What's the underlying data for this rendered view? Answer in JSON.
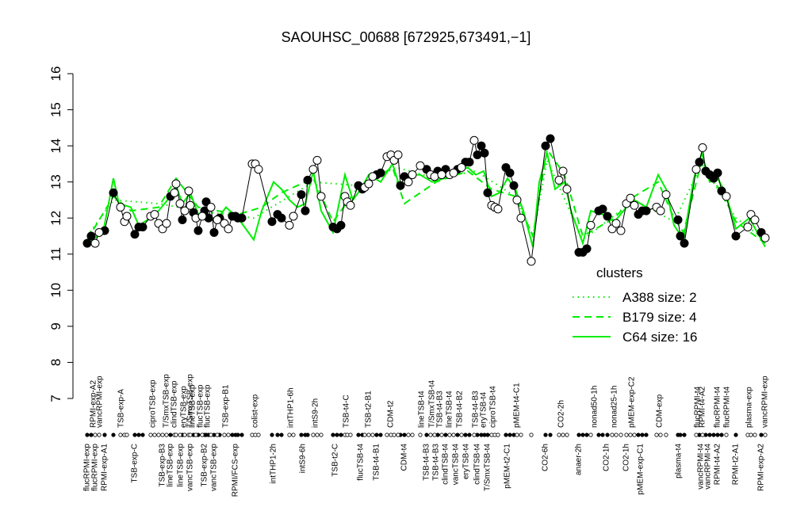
{
  "chart_data": {
    "type": "scatter",
    "title": "SAOUHSC_00688 [672925,673491,−1]",
    "ylim": [
      7,
      16
    ],
    "yticks": [
      7,
      8,
      9,
      10,
      11,
      12,
      13,
      14,
      15,
      16
    ],
    "xlim": [
      0,
      175
    ],
    "points": [
      {
        "color": "#000000",
        "x": [
          2,
          3,
          6.4,
          8.6,
          14,
          15,
          16,
          23,
          26,
          28.8,
          30,
          31.6,
          32,
          32.6,
          34,
          35.4,
          38.6,
          39.4,
          40,
          41,
          48.6,
          50,
          51,
          56,
          57,
          57.6,
          64,
          65,
          66,
          70.4,
          71.4,
          75,
          76,
          81,
          82,
          87.6,
          90.4,
          92.4,
          95.4,
          97.4,
          98.4,
          100.4,
          101.4,
          102.2,
          103,
          107.6,
          108.6,
          109.6,
          117.6,
          118.8,
          126,
          127,
          128,
          131,
          132,
          133.2,
          141,
          142,
          143,
          151,
          151.6,
          152.6,
          156.4,
          158,
          159,
          160,
          161,
          162,
          165.6,
          172
        ],
        "values": [
          11.3,
          11.5,
          11.65,
          12.7,
          11.55,
          11.75,
          11.75,
          12.6,
          11.95,
          12.15,
          11.65,
          12.2,
          12.45,
          12.0,
          11.6,
          12.0,
          12.05,
          12.05,
          12.0,
          12.0,
          11.9,
          12.1,
          12.0,
          12.65,
          12.2,
          13.05,
          11.75,
          11.7,
          11.8,
          12.9,
          12.8,
          13.2,
          13.25,
          12.9,
          13.15,
          13.35,
          13.3,
          13.35,
          13.35,
          13.55,
          13.55,
          13.75,
          14.0,
          13.8,
          12.7,
          13.4,
          13.25,
          12.9,
          14.0,
          14.2,
          11.05,
          11.05,
          11.15,
          12.2,
          12.25,
          12.05,
          12.1,
          12.2,
          12.2,
          11.95,
          11.5,
          11.3,
          13.55,
          13.3,
          13.2,
          13.1,
          13.25,
          12.75,
          11.5,
          11.6
        ]
      },
      {
        "color": "#ffffff",
        "x": [
          4,
          5,
          10.4,
          11.4,
          12,
          18,
          19,
          20,
          21,
          22,
          24,
          24.4,
          25.4,
          26.6,
          27.6,
          28,
          29.4,
          31,
          33.2,
          34.8,
          36.6,
          37.6,
          43.6,
          44.4,
          45.2,
          53,
          54,
          59,
          60,
          61,
          67,
          67.6,
          68.4,
          72,
          73,
          74,
          77.6,
          78.6,
          79.4,
          80.4,
          83,
          84,
          86,
          88.6,
          89.6,
          91.4,
          93.4,
          94.4,
          96.4,
          99.6,
          104,
          104.8,
          105.6,
          110.4,
          111.4,
          114,
          121,
          122,
          123,
          129,
          134.4,
          135.4,
          136.6,
          138,
          139,
          140,
          145.6,
          146.6,
          148,
          155.6,
          157.2,
          163.2,
          168.6,
          169.4,
          170.4,
          173
        ],
        "values": [
          11.3,
          11.6,
          12.3,
          11.9,
          12.05,
          12.05,
          12.1,
          11.85,
          11.7,
          11.85,
          12.7,
          12.95,
          12.4,
          12.2,
          12.75,
          12.35,
          12.0,
          12.05,
          12.3,
          11.95,
          11.85,
          11.7,
          13.5,
          13.5,
          13.35,
          11.8,
          12.05,
          13.35,
          13.6,
          12.6,
          12.6,
          12.45,
          12.35,
          12.85,
          12.95,
          13.15,
          13.7,
          13.75,
          13.6,
          13.75,
          13.0,
          13.2,
          13.45,
          13.2,
          13.15,
          13.2,
          13.2,
          13.25,
          13.4,
          14.15,
          12.35,
          12.3,
          12.25,
          12.5,
          12.0,
          10.8,
          13.05,
          13.3,
          12.8,
          11.8,
          11.7,
          11.85,
          11.65,
          12.4,
          12.55,
          12.35,
          12.3,
          12.2,
          12.65,
          13.35,
          13.95,
          12.6,
          11.75,
          12.1,
          11.95,
          11.45
        ]
      }
    ],
    "legend_title": "clusters",
    "series": [
      {
        "name": "A388 size: 2",
        "color": "#00ee00",
        "dash": "dotted",
        "x": [
          2,
          8.6,
          20,
          30,
          44,
          59,
          70,
          80,
          90,
          100,
          110,
          114.4,
          118,
          127,
          140,
          150,
          157,
          165.6,
          173
        ],
        "values": [
          11.5,
          12.5,
          12.4,
          12.2,
          12.0,
          13.0,
          12.9,
          13.4,
          13.1,
          13.3,
          12.6,
          11.5,
          13.6,
          11.4,
          12.5,
          11.9,
          13.5,
          12.0,
          11.4
        ]
      },
      {
        "name": "B179 size: 4",
        "color": "#00ee00",
        "dash": "dashed",
        "x": [
          2,
          8.6,
          13,
          20,
          24.4,
          30,
          40,
          46,
          51,
          59,
          64,
          70,
          79,
          82,
          90,
          98,
          104,
          110,
          114.4,
          118,
          122.4,
          127,
          135,
          140,
          146,
          150,
          152.4,
          157,
          163,
          165.6,
          173
        ],
        "values": [
          11.4,
          12.6,
          12.2,
          12.3,
          13.1,
          12.3,
          12.1,
          12.3,
          12.7,
          13.1,
          11.9,
          12.8,
          13.4,
          12.4,
          13.0,
          13.3,
          12.8,
          12.6,
          11.5,
          13.9,
          13.2,
          11.5,
          12.0,
          12.6,
          13.0,
          12.0,
          11.6,
          13.6,
          12.5,
          11.9,
          11.3
        ]
      },
      {
        "name": "C64 size: 16",
        "color": "#00ee00",
        "dash": "solid",
        "x": [
          2,
          6,
          8.6,
          10,
          13,
          15,
          18,
          20,
          23,
          24.4,
          26,
          28,
          30,
          32.4,
          35,
          37,
          40,
          42,
          44,
          46,
          49,
          51,
          53,
          55,
          57,
          59,
          61,
          64,
          67,
          69,
          71,
          73,
          76,
          79,
          81,
          83,
          86,
          89,
          92,
          95,
          98,
          100,
          102,
          104,
          106,
          108,
          110,
          112,
          114.4,
          116,
          118,
          120,
          122.4,
          124,
          127,
          129,
          132,
          135,
          138,
          140,
          143,
          146,
          148,
          150,
          152.4,
          155,
          157,
          159,
          161,
          163,
          165.6,
          169,
          173
        ],
        "values": [
          11.3,
          11.6,
          13.1,
          12.4,
          12.3,
          11.8,
          12.0,
          12.2,
          12.6,
          12.9,
          12.4,
          12.7,
          12.1,
          12.0,
          12.0,
          12.3,
          12.0,
          11.7,
          11.4,
          12.2,
          13.0,
          12.8,
          12.5,
          12.3,
          12.4,
          13.3,
          12.2,
          11.6,
          13.2,
          12.5,
          12.8,
          13.2,
          13.0,
          13.5,
          12.8,
          13.2,
          13.2,
          13.0,
          13.1,
          13.3,
          13.4,
          13.2,
          13.3,
          12.6,
          12.7,
          13.1,
          12.8,
          12.2,
          11.2,
          13.0,
          13.8,
          12.8,
          13.0,
          12.2,
          11.3,
          12.2,
          12.1,
          11.9,
          12.3,
          12.5,
          12.3,
          13.2,
          12.8,
          11.8,
          11.4,
          13.1,
          13.8,
          13.0,
          13.1,
          12.7,
          11.7,
          12.0,
          11.2
        ]
      }
    ],
    "top_labels": {
      "x": [
        3.6,
        5.2,
        10.6,
        18.6,
        22,
        24,
        26.4,
        28,
        28.6,
        30.6,
        32.4,
        37,
        44.4,
        53.4,
        59.6,
        67.4,
        73,
        78.6,
        86.4,
        89,
        91,
        93.4,
        96,
        100,
        102,
        104.4,
        110.4,
        121.6,
        130,
        135,
        139.4,
        146.4,
        156,
        157.2,
        161,
        163.4,
        169,
        173
      ],
      "labels": [
        "RPMI-exp-A2",
        "vancRPMI-exp",
        "TSB-exp-A",
        "ciproTSB-exp",
        "T/SmxTSB-exp",
        "clindTSB-exp",
        "eryTSB-exp",
        "T/SmxTSB-exp",
        "lineTSB-exp",
        "flucTSB-exp",
        "flucTSB-exp",
        "TSB-exp-B1",
        "colist-exp",
        "intTHP1-6h",
        "intS9-2h",
        "TSB-t4-C",
        "TSB-t2-B1",
        "CDM-t2",
        "lineTSB-t4",
        "T/SmxTSB-t4",
        "TSB-t4-B3",
        "lineTSB-t4",
        "TSB-t4-B2",
        "TSB-t4-B3",
        "eryTSB-t4",
        "ciproTSB-t4",
        "pMEM-t4-C1",
        "CO2-2h",
        "nonad50-1h",
        "nonad25-1h",
        "pMEM-exp-C2",
        "CDM-exp",
        "flucRPMI-t4",
        "RPMI-t4-A2",
        "flucRPMI-t4",
        "flucRPMI-t4",
        "plasma-exp",
        "vancRPMI-exp"
      ]
    },
    "bottom_labels": {
      "x": [
        2,
        4,
        6.4,
        14,
        21,
        23,
        25.6,
        28,
        31.6,
        34,
        39.4,
        49,
        56.4,
        64.6,
        71,
        75,
        82,
        87.6,
        90,
        92.4,
        95,
        97.6,
        100.4,
        103,
        108,
        117.6,
        126,
        133,
        138,
        141.6,
        151.2,
        156.8,
        158.6,
        161,
        165.6,
        172
      ],
      "labels": [
        "flucRPMI-exp",
        "flucRPMI-exp",
        "RPMI-exp-A1",
        "TSB-exp-C",
        "TSB-exp-B3",
        "lineTSB-exp",
        "lineTSB-exp",
        "vancTSB-exp",
        "TSB-exp-B2",
        "vancTSB-exp",
        "RPMI/FCS-exp",
        "intTHP1-2h",
        "intS9-6h",
        "TSB-t2-C",
        "flucTSB-t4",
        "TSB-t4-B1",
        "CDM-t4",
        "TSB-t4-B3",
        "TSB-t4-B3",
        "clindTSB-t4",
        "vancTSB-t4",
        "eryTSB-t4",
        "clindTSB-t4",
        "T/SmxTSB-t4",
        "pMEM-t2-C1",
        "CO2-6h",
        "anaer-2h",
        "CO2-1h",
        "CO2-1h",
        "pMEM-exp-C1",
        "plasma-t4",
        "vancRPMI-t4",
        "vancRPMI-t4",
        "RPMI-t4-A2",
        "RPMI-t2-A1",
        "RPMI-exp-A2"
      ]
    }
  }
}
